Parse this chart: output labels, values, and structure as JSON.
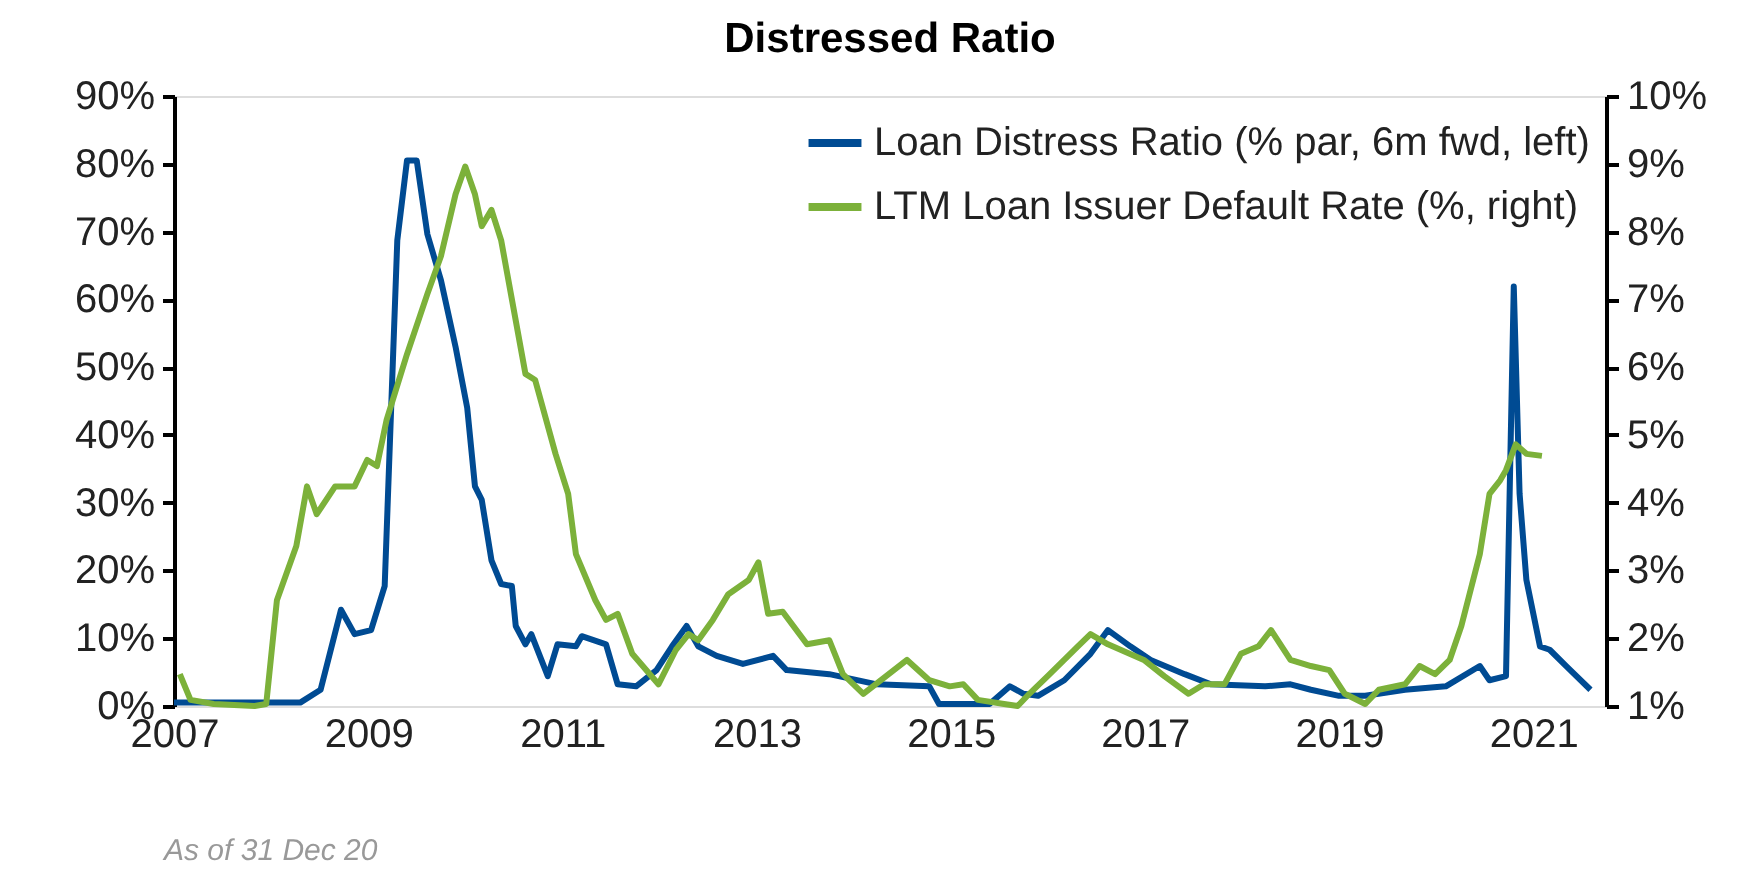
{
  "chart_data": {
    "type": "line",
    "title": "Distressed Ratio",
    "xlim": [
      2007,
      2021.75
    ],
    "xticks": [
      2007,
      2009,
      2011,
      2013,
      2015,
      2017,
      2019,
      2021
    ],
    "ylim": [
      0,
      90
    ],
    "yticks": [
      {
        "value": 0,
        "label": "0%"
      },
      {
        "value": 10,
        "label": "10%"
      },
      {
        "value": 20,
        "label": "20%"
      },
      {
        "value": 30,
        "label": "30%"
      },
      {
        "value": 40,
        "label": "40%"
      },
      {
        "value": 50,
        "label": "50%"
      },
      {
        "value": 60,
        "label": "60%"
      },
      {
        "value": 70,
        "label": "70%"
      },
      {
        "value": 80,
        "label": "80%"
      },
      {
        "value": 90,
        "label": "90%"
      }
    ],
    "y2lim": [
      1,
      10
    ],
    "y2ticks": [
      {
        "value": 1,
        "label": "1%"
      },
      {
        "value": 2,
        "label": "2%"
      },
      {
        "value": 3,
        "label": "3%"
      },
      {
        "value": 4,
        "label": "4%"
      },
      {
        "value": 5,
        "label": "5%"
      },
      {
        "value": 6,
        "label": "6%"
      },
      {
        "value": 7,
        "label": "7%"
      },
      {
        "value": 8,
        "label": "8%"
      },
      {
        "value": 9,
        "label": "9%"
      },
      {
        "value": 10,
        "label": "10%"
      }
    ],
    "legend": "top right",
    "grid": false,
    "annotations": [
      "As of 31 Dec 20"
    ],
    "series": [
      {
        "name": "Loan Distress Ratio (% par, 6m fwd, left)",
        "color": "#004b93",
        "x": [
          2007.0,
          2008.3,
          2008.51,
          2008.72,
          2008.86,
          2009.03,
          2009.17,
          2009.3,
          2009.4,
          2009.5,
          2009.61,
          2009.75,
          2009.9,
          2010.02,
          2010.1,
          2010.17,
          2010.27,
          2010.37,
          2010.48,
          2010.52,
          2010.62,
          2010.68,
          2010.85,
          2010.95,
          2011.14,
          2011.2,
          2011.45,
          2011.57,
          2011.76,
          2011.97,
          2012.13,
          2012.28,
          2012.4,
          2012.59,
          2012.86,
          2013.17,
          2013.31,
          2013.75,
          2014.24,
          2014.78,
          2014.88,
          2015.4,
          2015.61,
          2015.75,
          2015.9,
          2016.17,
          2016.44,
          2016.62,
          2016.85,
          2017.06,
          2017.41,
          2017.68,
          2018.24,
          2018.5,
          2018.71,
          2019.0,
          2019.27,
          2019.68,
          2020.1,
          2020.45,
          2020.55,
          2020.72,
          2020.8,
          2020.86,
          2020.93,
          2021.07,
          2021.17,
          2021.34,
          2021.59
        ],
        "values": [
          0.5,
          0.5,
          2.4,
          14.2,
          10.6,
          11.2,
          17.7,
          68.7,
          80.5,
          80.5,
          69.6,
          62.8,
          53,
          44,
          32.4,
          30.4,
          21.5,
          18,
          17.7,
          11.8,
          9.1,
          10.6,
          4.4,
          9.1,
          8.8,
          10.3,
          9.1,
          3.2,
          2.9,
          5.3,
          8.8,
          11.8,
          8.8,
          7.4,
          6.2,
          7.4,
          5.3,
          4.7,
          3.2,
          2.9,
          0.3,
          0.3,
          2.9,
          1.8,
          1.5,
          3.8,
          7.7,
          11.2,
          8.8,
          6.8,
          4.7,
          3.2,
          2.9,
          3.2,
          2.4,
          1.5,
          1.5,
          2.4,
          2.9,
          5.9,
          3.8,
          4.4,
          61.9,
          31.3,
          18.6,
          8.8,
          8.3,
          5.9,
          2.4
        ]
      },
      {
        "name": "LTM Loan Issuer Default Rate (%, right)",
        "color": "#7cb13a",
        "axis": "y2",
        "x": [
          2007.06,
          2007.17,
          2007.41,
          2007.83,
          2007.95,
          2008.06,
          2008.26,
          2008.37,
          2008.47,
          2008.66,
          2008.86,
          2008.99,
          2009.09,
          2009.19,
          2009.4,
          2009.61,
          2009.75,
          2009.9,
          2010.0,
          2010.1,
          2010.17,
          2010.27,
          2010.37,
          2010.62,
          2010.72,
          2010.93,
          2011.06,
          2011.14,
          2011.34,
          2011.45,
          2011.57,
          2011.72,
          2011.99,
          2012.17,
          2012.3,
          2012.4,
          2012.55,
          2012.71,
          2012.92,
          2013.02,
          2013.12,
          2013.27,
          2013.52,
          2013.75,
          2013.89,
          2014.1,
          2014.55,
          2014.78,
          2014.99,
          2015.13,
          2015.28,
          2015.55,
          2015.69,
          2015.81,
          2016.02,
          2016.31,
          2016.44,
          2016.62,
          2016.99,
          2017.2,
          2017.45,
          2017.61,
          2017.82,
          2017.99,
          2018.17,
          2018.3,
          2018.5,
          2018.71,
          2018.9,
          2019.06,
          2019.27,
          2019.41,
          2019.68,
          2019.83,
          2019.99,
          2020.14,
          2020.26,
          2020.45,
          2020.55,
          2020.66,
          2020.72,
          2020.82,
          2020.93,
          2021.09
        ],
        "values": [
          1.47,
          1.09,
          1.03,
          1.0,
          1.03,
          2.56,
          3.36,
          4.24,
          3.83,
          4.24,
          4.24,
          4.63,
          4.54,
          5.22,
          6.19,
          7.08,
          7.64,
          8.55,
          8.96,
          8.55,
          8.08,
          8.32,
          7.87,
          5.9,
          5.81,
          4.72,
          4.13,
          3.24,
          2.56,
          2.27,
          2.36,
          1.77,
          1.32,
          1.83,
          2.06,
          1.97,
          2.27,
          2.65,
          2.86,
          3.12,
          2.36,
          2.39,
          1.91,
          1.97,
          1.47,
          1.18,
          1.68,
          1.38,
          1.29,
          1.32,
          1.09,
          1.03,
          1.0,
          1.18,
          1.47,
          1.88,
          2.06,
          1.91,
          1.68,
          1.44,
          1.18,
          1.32,
          1.32,
          1.77,
          1.88,
          2.12,
          1.68,
          1.59,
          1.53,
          1.18,
          1.03,
          1.24,
          1.32,
          1.59,
          1.47,
          1.68,
          2.18,
          3.24,
          4.13,
          4.33,
          4.48,
          4.86,
          4.72,
          4.69
        ]
      }
    ]
  }
}
